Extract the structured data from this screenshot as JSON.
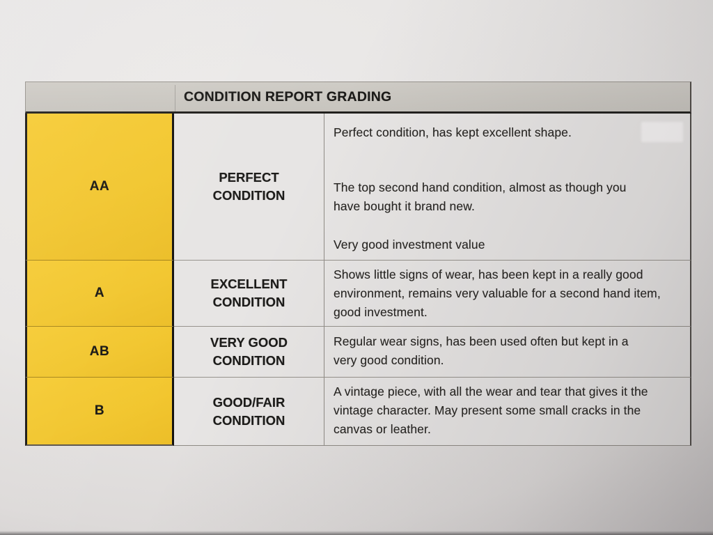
{
  "document": {
    "title": "CONDITION REPORT GRADING",
    "grading_table": {
      "rows": [
        {
          "grade": "AA",
          "condition": "PERFECT CONDITION",
          "description_paragraphs": [
            "Perfect condition, has kept excellent shape.",
            "The top second hand condition, almost as though you have bought it brand new.",
            "Very good investment value"
          ]
        },
        {
          "grade": "A",
          "condition": "EXCELLENT CONDITION",
          "description_paragraphs": [
            "Shows little signs of wear, has been kept in a really good environment, remains very valuable for a second hand item, good investment."
          ]
        },
        {
          "grade": "AB",
          "condition": "VERY GOOD CONDITION",
          "description_paragraphs": [
            "Regular wear signs, has been used often but kept in a very good condition."
          ]
        },
        {
          "grade": "B",
          "condition": "GOOD/FAIR CONDITION",
          "description_paragraphs": [
            "A vintage piece, with all the wear and tear that gives it the vintage character. May present some small cracks in the canvas or leather."
          ]
        }
      ]
    },
    "colors": {
      "grade_column_yellow": "#F2C62E",
      "header_gray": "#CBC8C2",
      "paper": "#E7E5E4",
      "ink": "#262421"
    }
  }
}
